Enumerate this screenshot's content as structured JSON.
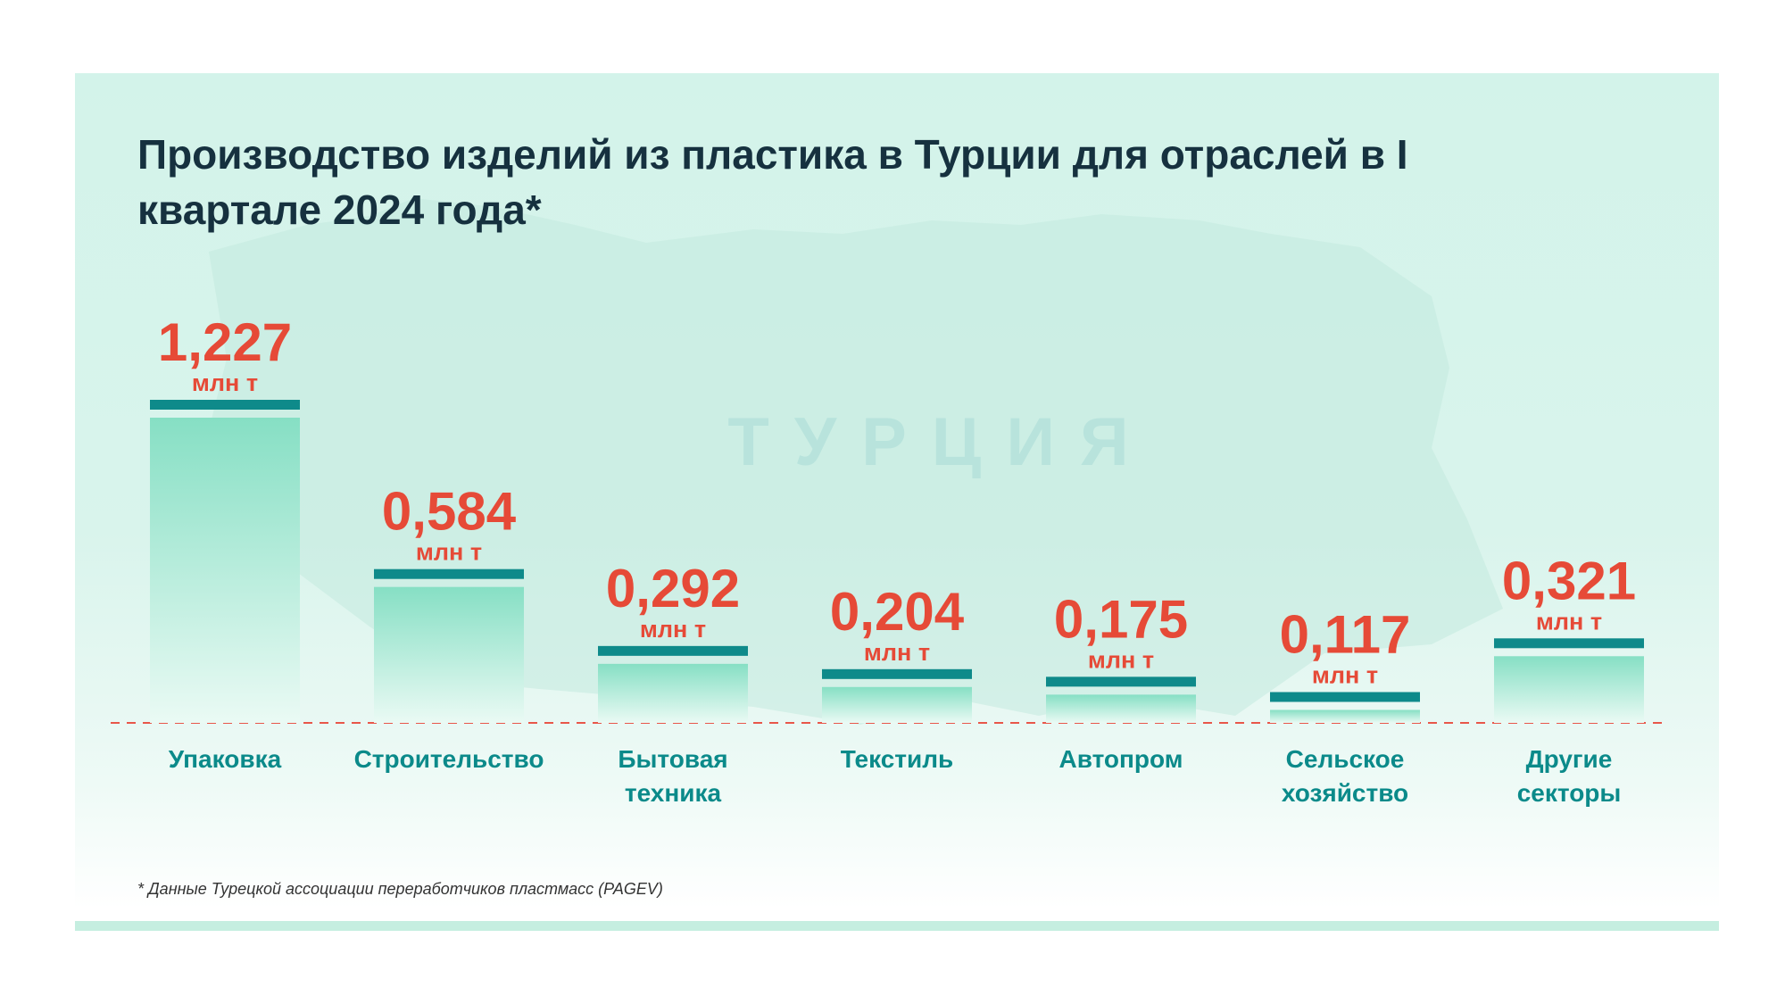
{
  "title": "Производство изделий из пластика в Турции для отраслей в I квартале 2024 года*",
  "map_label": "ТУРЦИЯ",
  "footnote": "* Данные Турецкой ассоциации переработчиков пластмасс (PAGEV)",
  "colors": {
    "value": "#e64a37",
    "cap": "#0e8a8a",
    "category": "#0b8a8a",
    "bar_top": "#86dfc4",
    "bar_bottom": "#eafaf4",
    "baseline": "#e8574a",
    "title": "#16313f"
  },
  "chart_data": {
    "type": "bar",
    "title": "Производство изделий из пластика в Турции для отраслей в I квартале 2024 года*",
    "categories": [
      "Упаковка",
      "Строительство",
      "Бытовая техника",
      "Текстиль",
      "Автопром",
      "Сельское хозяйство",
      "Другие секторы"
    ],
    "category_lines": [
      [
        "Упаковка"
      ],
      [
        "Строительство"
      ],
      [
        "Бытовая",
        "техника"
      ],
      [
        "Текстиль"
      ],
      [
        "Автопром"
      ],
      [
        "Сельское",
        "хозяйство"
      ],
      [
        "Другие",
        "секторы"
      ]
    ],
    "values": [
      1.227,
      0.584,
      0.292,
      0.204,
      0.175,
      0.117,
      0.321
    ],
    "value_labels": [
      "1,227",
      "0,584",
      "0,292",
      "0,204",
      "0,175",
      "0,117",
      "0,321"
    ],
    "unit": "млн т",
    "ylim": [
      0,
      1.227
    ],
    "grid": false,
    "legend": "none"
  }
}
